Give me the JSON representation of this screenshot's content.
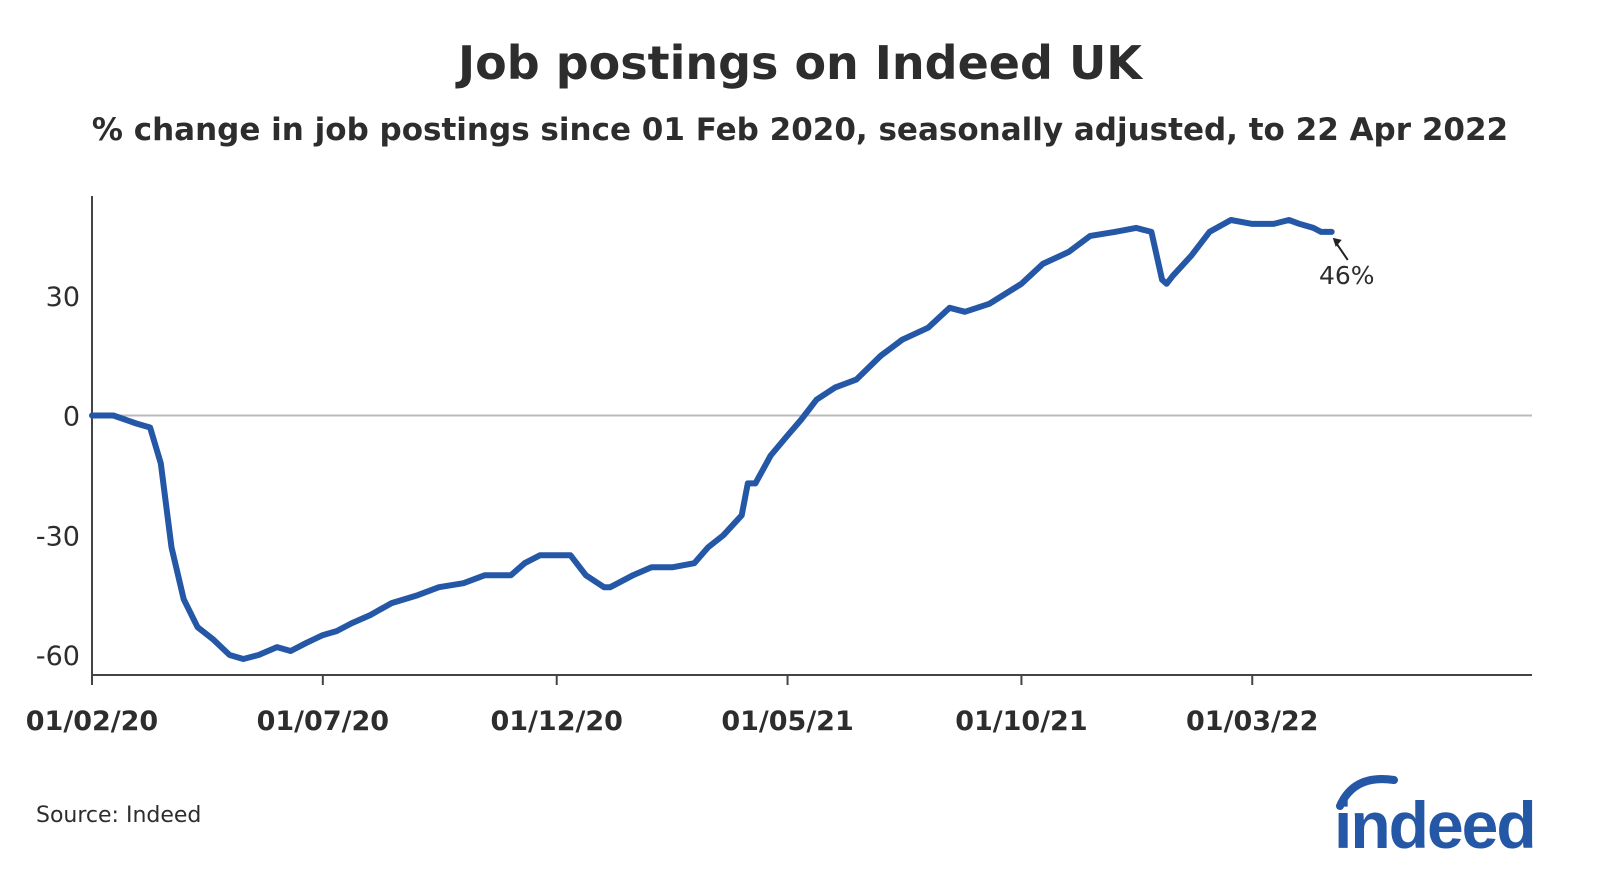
{
  "title": "Job postings on Indeed UK",
  "subtitle": "% change in job postings since 01 Feb 2020, seasonally adjusted, to 22 Apr 2022",
  "source": "Source: Indeed",
  "logo_text": "indeed",
  "colors": {
    "line": "#2557a7",
    "text": "#2d2d2d",
    "axis": "#444444",
    "zero_line": "#bbbbbb"
  },
  "chart_data": {
    "type": "line",
    "title": "Job postings on Indeed UK",
    "subtitle": "% change in job postings since 01 Feb 2020, seasonally adjusted, to 22 Apr 2022",
    "xlabel": "",
    "ylabel": "",
    "xlim": [
      "2020-02-01",
      "2022-08-31"
    ],
    "ylim": [
      -65,
      55
    ],
    "x_ticks": [
      "01/02/20",
      "01/07/20",
      "01/12/20",
      "01/05/21",
      "01/10/21",
      "01/03/22"
    ],
    "y_ticks": [
      30,
      0,
      -30,
      -60
    ],
    "grid": false,
    "legend": "none",
    "end_label": "46%",
    "series": [
      {
        "x": [
          "2020-02-01",
          "2020-02-15",
          "2020-03-01",
          "2020-03-10",
          "2020-03-17",
          "2020-03-24",
          "2020-04-01",
          "2020-04-10",
          "2020-04-20",
          "2020-05-01",
          "2020-05-10",
          "2020-05-20",
          "2020-06-01",
          "2020-06-10",
          "2020-06-20",
          "2020-07-01",
          "2020-07-10",
          "2020-07-20",
          "2020-08-01",
          "2020-08-15",
          "2020-09-01",
          "2020-09-15",
          "2020-10-01",
          "2020-10-15",
          "2020-11-01",
          "2020-11-10",
          "2020-11-20",
          "2020-12-01",
          "2020-12-10",
          "2020-12-20",
          "2021-01-01",
          "2021-01-05",
          "2021-01-10",
          "2021-01-20",
          "2021-02-01",
          "2021-02-15",
          "2021-03-01",
          "2021-03-10",
          "2021-03-20",
          "2021-04-01",
          "2021-04-05",
          "2021-04-10",
          "2021-04-20",
          "2021-05-01",
          "2021-05-10",
          "2021-05-20",
          "2021-06-01",
          "2021-06-15",
          "2021-07-01",
          "2021-07-15",
          "2021-08-01",
          "2021-08-15",
          "2021-08-25",
          "2021-09-10",
          "2021-10-01",
          "2021-10-15",
          "2021-11-01",
          "2021-11-15",
          "2021-12-01",
          "2021-12-15",
          "2021-12-25",
          "2022-01-01",
          "2022-01-04",
          "2022-01-08",
          "2022-01-20",
          "2022-02-01",
          "2022-02-15",
          "2022-03-01",
          "2022-03-15",
          "2022-03-25",
          "2022-04-01",
          "2022-04-10",
          "2022-04-15",
          "2022-04-22"
        ],
        "values": [
          0,
          0,
          -2,
          -3,
          -12,
          -33,
          -46,
          -53,
          -56,
          -60,
          -61,
          -60,
          -58,
          -59,
          -57,
          -55,
          -54,
          -52,
          -50,
          -47,
          -45,
          -43,
          -42,
          -40,
          -40,
          -37,
          -35,
          -35,
          -35,
          -40,
          -43,
          -43,
          -42,
          -40,
          -38,
          -38,
          -37,
          -33,
          -30,
          -25,
          -17,
          -17,
          -10,
          -5,
          -1,
          4,
          7,
          9,
          15,
          19,
          22,
          27,
          26,
          28,
          33,
          38,
          41,
          45,
          46,
          47,
          46,
          34,
          33,
          35,
          40,
          46,
          49,
          48,
          48,
          49,
          48,
          47,
          46,
          46
        ]
      }
    ]
  }
}
